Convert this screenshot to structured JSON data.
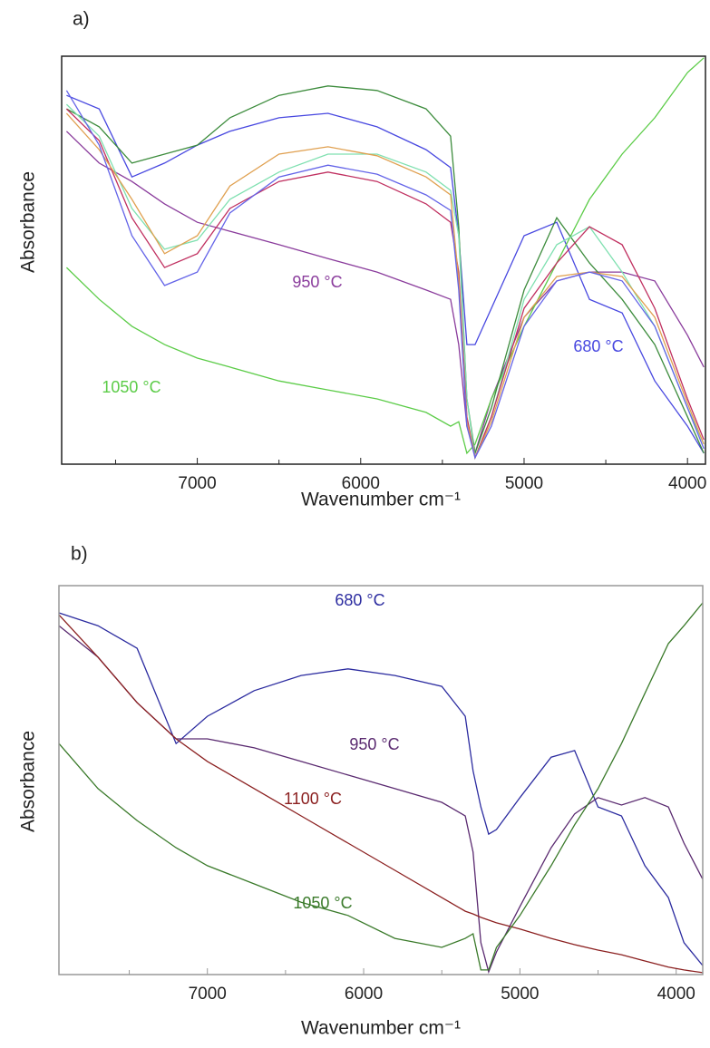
{
  "chart_data": [
    {
      "type": "line",
      "label": "a)",
      "x_label": "Wavenumber cm⁻¹",
      "y_label": "Absorbance",
      "xlim": [
        7830,
        3890
      ],
      "ylim": [
        0,
        1
      ],
      "xticks": [
        7000,
        6000,
        5000,
        4000
      ],
      "xminorticks": [
        7500,
        6500,
        5500,
        4500
      ],
      "x": [
        7800,
        7600,
        7400,
        7200,
        7000,
        6800,
        6500,
        6200,
        5900,
        5600,
        5450,
        5400,
        5350,
        5300,
        5200,
        5000,
        4800,
        4600,
        4400,
        4200,
        4000,
        3900
      ],
      "series": [
        {
          "name": "680 °C",
          "color": "#4848e0",
          "values": [
            0.904,
            0.871,
            0.704,
            0.738,
            0.782,
            0.816,
            0.849,
            0.86,
            0.827,
            0.771,
            0.727,
            0.56,
            0.293,
            0.293,
            0.382,
            0.56,
            0.593,
            0.404,
            0.371,
            0.204,
            0.093,
            0.027
          ]
        },
        {
          "name": "950 °C",
          "color": "#8a3c9c",
          "values": [
            0.816,
            0.738,
            0.693,
            0.638,
            0.593,
            0.571,
            0.538,
            0.504,
            0.471,
            0.427,
            0.404,
            0.293,
            0.093,
            0.027,
            0.16,
            0.36,
            0.449,
            0.471,
            0.471,
            0.449,
            0.316,
            0.238
          ]
        },
        {
          "name": "1050 °C",
          "color": "#5ccc48",
          "values": [
            0.482,
            0.404,
            0.338,
            0.293,
            0.26,
            0.238,
            0.204,
            0.182,
            0.16,
            0.127,
            0.093,
            0.104,
            0.027,
            0.049,
            0.16,
            0.338,
            0.493,
            0.649,
            0.76,
            0.849,
            0.96,
            0.996
          ]
        },
        {
          "color": "#3d8c3d",
          "values": [
            0.871,
            0.827,
            0.738,
            0.76,
            0.782,
            0.849,
            0.904,
            0.927,
            0.916,
            0.871,
            0.804,
            0.582,
            0.16,
            0.027,
            0.138,
            0.427,
            0.604,
            0.493,
            0.404,
            0.293,
            0.116,
            0.027
          ]
        },
        {
          "color": "#7fe0b0",
          "values": [
            0.882,
            0.804,
            0.627,
            0.527,
            0.549,
            0.649,
            0.716,
            0.76,
            0.76,
            0.716,
            0.671,
            0.56,
            0.16,
            0.016,
            0.116,
            0.404,
            0.538,
            0.582,
            0.471,
            0.338,
            0.138,
            0.049
          ]
        },
        {
          "color": "#c03060",
          "values": [
            0.871,
            0.793,
            0.604,
            0.482,
            0.516,
            0.627,
            0.693,
            0.716,
            0.693,
            0.638,
            0.593,
            0.471,
            0.116,
            0.016,
            0.116,
            0.382,
            0.493,
            0.582,
            0.538,
            0.382,
            0.16,
            0.06
          ]
        },
        {
          "color": "#e0a050",
          "values": [
            0.86,
            0.771,
            0.649,
            0.516,
            0.56,
            0.682,
            0.76,
            0.778,
            0.756,
            0.704,
            0.66,
            0.449,
            0.104,
            0.016,
            0.104,
            0.36,
            0.46,
            0.471,
            0.46,
            0.36,
            0.149,
            0.049
          ]
        },
        {
          "color": "#6464e8",
          "values": [
            0.916,
            0.782,
            0.56,
            0.438,
            0.471,
            0.616,
            0.704,
            0.733,
            0.711,
            0.66,
            0.622,
            0.427,
            0.093,
            0.016,
            0.093,
            0.338,
            0.449,
            0.471,
            0.449,
            0.338,
            0.138,
            0.038
          ]
        }
      ]
    },
    {
      "type": "line",
      "label": "b)",
      "x_label": "Wavenumber cm⁻¹",
      "y_label": "Absorbance",
      "xlim": [
        7950,
        3830
      ],
      "ylim": [
        0,
        1
      ],
      "xticks": [
        7000,
        6000,
        5000,
        4000
      ],
      "xminorticks": [
        7500,
        6500,
        5500,
        4500
      ],
      "x": [
        7950,
        7700,
        7450,
        7200,
        7000,
        6700,
        6400,
        6100,
        5800,
        5500,
        5350,
        5300,
        5250,
        5200,
        5150,
        5000,
        4800,
        4650,
        4500,
        4350,
        4200,
        4050,
        3950,
        3830
      ],
      "series": [
        {
          "name": "680 °C",
          "color": "#2c2ca0",
          "values": [
            0.93,
            0.897,
            0.839,
            0.594,
            0.664,
            0.73,
            0.769,
            0.786,
            0.769,
            0.741,
            0.664,
            0.524,
            0.431,
            0.361,
            0.373,
            0.455,
            0.559,
            0.576,
            0.431,
            0.408,
            0.28,
            0.198,
            0.082,
            0.023
          ]
        },
        {
          "name": "950 °C",
          "color": "#5a2a70",
          "values": [
            0.897,
            0.816,
            0.699,
            0.606,
            0.606,
            0.583,
            0.548,
            0.513,
            0.478,
            0.443,
            0.408,
            0.315,
            0.082,
            0.007,
            0.058,
            0.175,
            0.326,
            0.413,
            0.455,
            0.436,
            0.455,
            0.431,
            0.338,
            0.245
          ]
        },
        {
          "name": "1100 °C",
          "color": "#8b2020",
          "values": [
            0.925,
            0.816,
            0.699,
            0.606,
            0.548,
            0.478,
            0.408,
            0.338,
            0.268,
            0.198,
            0.163,
            0.156,
            0.147,
            0.14,
            0.133,
            0.117,
            0.093,
            0.077,
            0.063,
            0.051,
            0.035,
            0.019,
            0.012,
            0.005
          ]
        },
        {
          "name": "1050 °C",
          "color": "#3a7a2a",
          "values": [
            0.594,
            0.478,
            0.396,
            0.326,
            0.28,
            0.233,
            0.186,
            0.152,
            0.093,
            0.07,
            0.093,
            0.105,
            0.012,
            0.012,
            0.07,
            0.152,
            0.28,
            0.385,
            0.478,
            0.594,
            0.723,
            0.851,
            0.897,
            0.956
          ]
        }
      ]
    }
  ]
}
